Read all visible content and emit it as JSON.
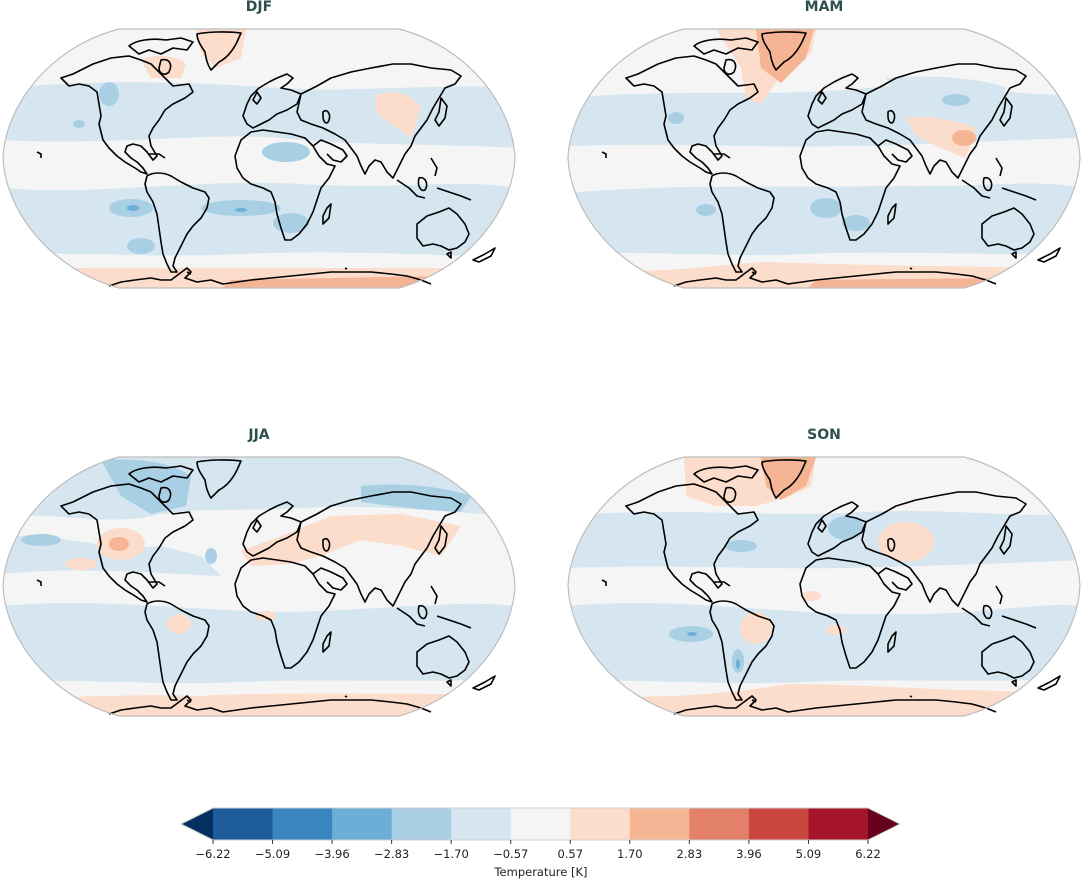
{
  "figure": {
    "panels": [
      {
        "id": "djf",
        "title": "DJF"
      },
      {
        "id": "mam",
        "title": "MAM"
      },
      {
        "id": "jja",
        "title": "JJA"
      },
      {
        "id": "son",
        "title": "SON"
      }
    ],
    "colorbar": {
      "label": "Temperature [K]",
      "ticks": [
        "−6.22",
        "−5.09",
        "−3.96",
        "−2.83",
        "−1.70",
        "−0.57",
        "0.57",
        "1.70",
        "2.83",
        "3.96",
        "5.09",
        "6.22"
      ],
      "colors": [
        "#1f5c9e",
        "#3985c0",
        "#6baed6",
        "#a9cfe4",
        "#d6e6f0",
        "#f5f5f5",
        "#fcdcca",
        "#f5b494",
        "#e3806a",
        "#c94740",
        "#a51428"
      ],
      "under_color": "#053061",
      "over_color": "#67001f"
    }
  },
  "chart_data": {
    "type": "heatmap",
    "title": "Seasonal temperature anomaly maps",
    "projection": "Robinson (global)",
    "panels": [
      "DJF",
      "MAM",
      "JJA",
      "SON"
    ],
    "colorbar": {
      "label": "Temperature [K]",
      "levels": [
        -6.22,
        -5.09,
        -3.96,
        -2.83,
        -1.7,
        -0.57,
        0.57,
        1.7,
        2.83,
        3.96,
        5.09,
        6.22
      ],
      "extend": "both",
      "colormap": "RdBu_r",
      "range": [
        -6.22,
        6.22
      ]
    },
    "qualitative_summary": {
      "DJF": "Mostly weak cooling (-0.57 to -2.83 K) over oceans and mid-latitudes; warming (+0.57 to +2.83 K) over Antarctica, Greenland/NE Canada and parts of East Asia; stronger cooling over western US, Sahara and South Atlantic patches",
      "MAM": "Widespread weak cooling over oceans; warming over Greenland (+1.70 to +2.83 K), Antarctica and South/East Asia (India-China)",
      "JJA": "Cooling over Arctic/Canada and northern Eurasia; warming over western US, Sahara/Middle East and central Asia; mild warming over Antarctica",
      "SON": "Warming over Greenland, Kazakhstan region, Brazil and Antarctica; cooling over Europe, N. Atlantic coast, S. Pacific and Argentina"
    }
  }
}
